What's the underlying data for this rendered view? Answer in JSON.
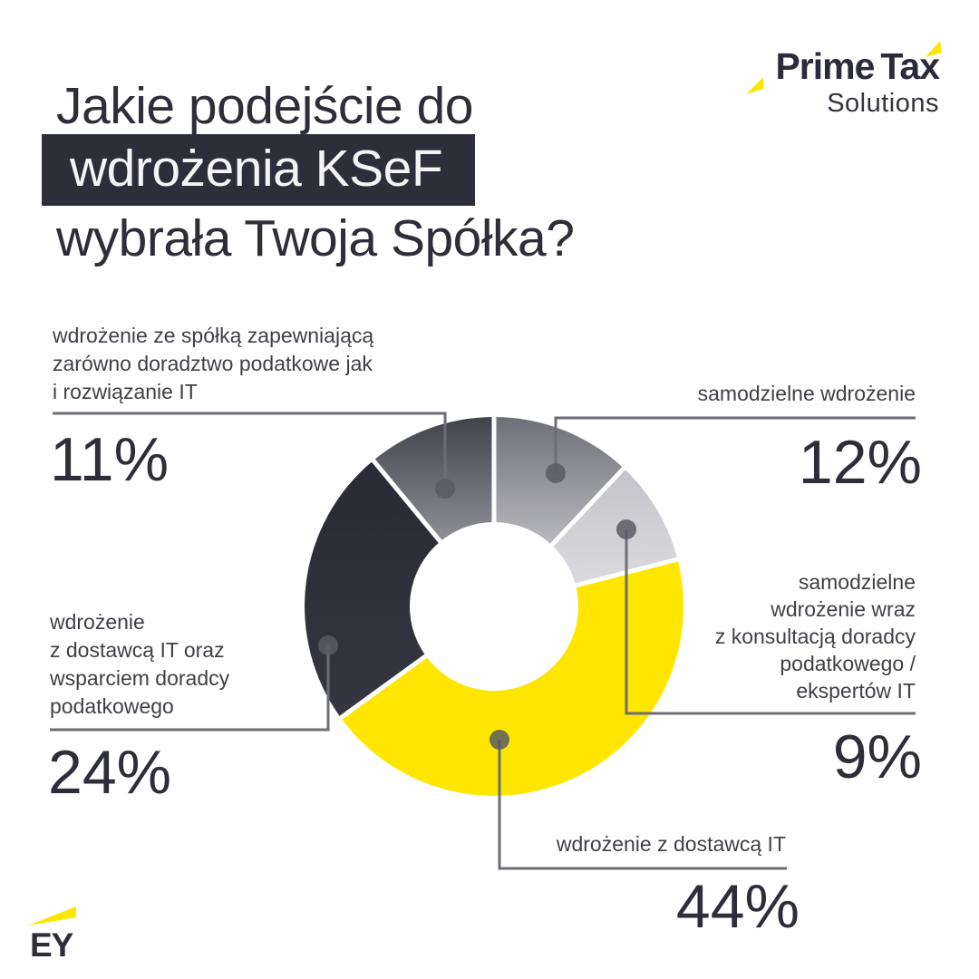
{
  "brand": {
    "logo_main_1": "Prime",
    "logo_main_2": "Tax",
    "logo_sub": "Solutions",
    "ey_logo": "EY"
  },
  "title": {
    "line1": "Jakie podejście do",
    "line2_highlight": "wdrożenia KSeF",
    "line3": "wybrała Twoja Spółka?"
  },
  "colors": {
    "accent_yellow": "#ffe600",
    "dark_navy": "#2e2e38",
    "highlight_box_bg": "#2e2e3a",
    "label_text": "#3f3f48",
    "connector_line": "#6d6d76",
    "connector_dot": "#5a5a64",
    "background": "#ffffff"
  },
  "chart_data": {
    "type": "pie",
    "subtype": "donut",
    "title": "Jakie podejście do wdrożenia KSeF wybrała Twoja Spółka?",
    "unit": "%",
    "start_angle_deg": 0,
    "direction": "clockwise",
    "legend_position": "callouts-around-donut",
    "segments": [
      {
        "id": "samodzielne-wdrozenie",
        "label": "samodzielne wdrożenie",
        "value": 12,
        "value_label": "12%",
        "color_from": "#6f6f77",
        "color_to": "#b9b9bf"
      },
      {
        "id": "samodzielne-z-konsultacja",
        "label": "samodzielne\nwdrożenie wraz\nz konsultacją doradcy\npodatkowego /\nekspertów IT",
        "value": 9,
        "value_label": "9%",
        "color_from": "#c3c3ca",
        "color_to": "#dbdbde"
      },
      {
        "id": "wdrozenie-z-dostawca-it",
        "label": "wdrożenie z dostawcą IT",
        "value": 44,
        "value_label": "44%",
        "color_from": "#ffe600",
        "color_to": "#ffe600"
      },
      {
        "id": "dostawca-it-i-doradca",
        "label": "wdrożenie\nz dostawcą IT oraz\nwsparciem doradcy\npodatkowego",
        "value": 24,
        "value_label": "24%",
        "color_from": "#2a2a35",
        "color_to": "#363642"
      },
      {
        "id": "spolka-doradztwo-i-it",
        "label": "wdrożenie ze spółką zapewniającą\nzarówno doradztwo podatkowe jak\ni rozwiązanie IT",
        "value": 11,
        "value_label": "11%",
        "color_from": "#42424b",
        "color_to": "#8f8f96"
      }
    ]
  }
}
